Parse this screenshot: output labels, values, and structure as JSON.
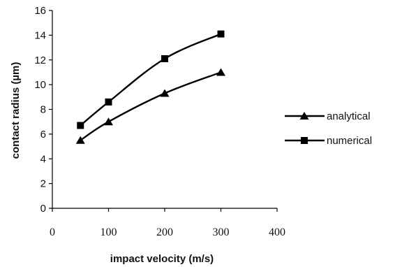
{
  "chart_data": {
    "type": "line",
    "title": "",
    "xlabel": "impact velocity (m/s)",
    "ylabel": "contact radius (µm)",
    "xlim": [
      0,
      400
    ],
    "ylim": [
      0,
      16
    ],
    "xticks": [
      "0",
      "100",
      "200",
      "300",
      "400"
    ],
    "yticks": [
      "0",
      "2",
      "4",
      "6",
      "8",
      "10",
      "12",
      "14",
      "16"
    ],
    "grid": false,
    "legend_position": "right",
    "series": [
      {
        "name": "analytical",
        "marker": "triangle",
        "color": "#000000",
        "x": [
          50,
          100,
          200,
          300
        ],
        "y": [
          5.5,
          7.0,
          9.3,
          11.0
        ]
      },
      {
        "name": "numerical",
        "marker": "square",
        "color": "#000000",
        "x": [
          50,
          100,
          200,
          300
        ],
        "y": [
          6.7,
          8.6,
          12.1,
          14.1
        ]
      }
    ]
  }
}
